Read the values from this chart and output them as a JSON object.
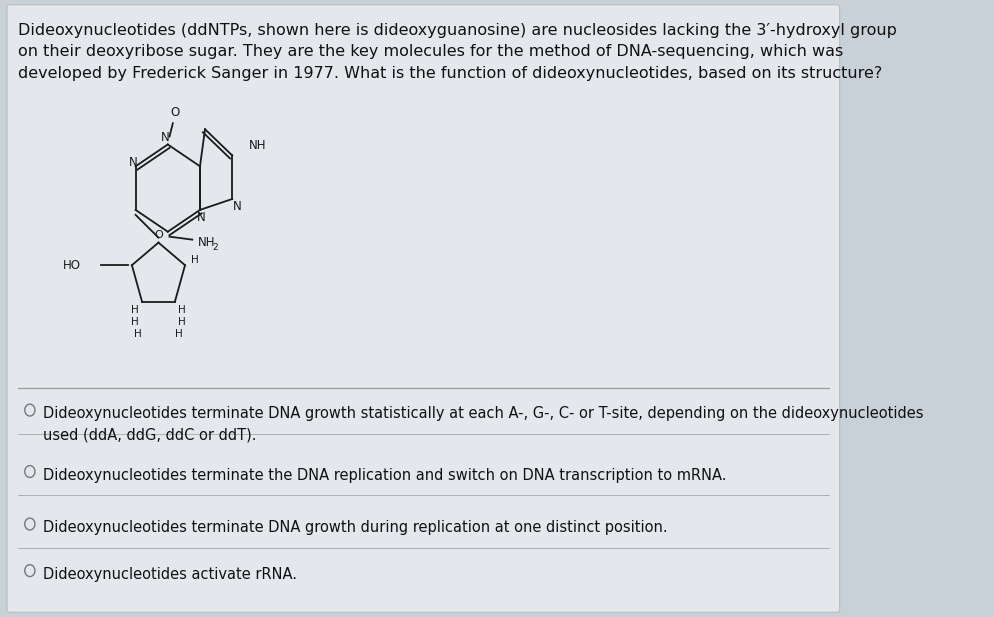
{
  "bg_color": "#c8d0d8",
  "card_color": "#e4e8ed",
  "title_text_line1": "Dideoxynucleotides (ddNTPs, shown here is dideoxyguanosine) are nucleosides lacking the 3′-hydroxyl group",
  "title_text_line2": "on their deoxyribose sugar. They are the key molecules for the method of DNA-sequencing, which was",
  "title_text_line3": "developed by Frederick Sanger in 1977. What is the function of dideoxynucleotides, based on its structure?",
  "options": [
    "Dideoxynucleotides terminate DNA growth statistically at each A-, G-, C- or T-site, depending on the dideoxynucleotides\nused (ddA, ddG, ddC or ddT).",
    "Dideoxynucleotides terminate the DNA replication and switch on DNA transcription to mRNA.",
    "Dideoxynucleotides terminate DNA growth during replication at one distinct position.",
    "Dideoxynucleotides activate rRNA."
  ],
  "title_fontsize": 11.5,
  "option_fontsize": 10.5,
  "text_color": "#111111",
  "divider_color": "#999999",
  "circle_color": "#777777"
}
